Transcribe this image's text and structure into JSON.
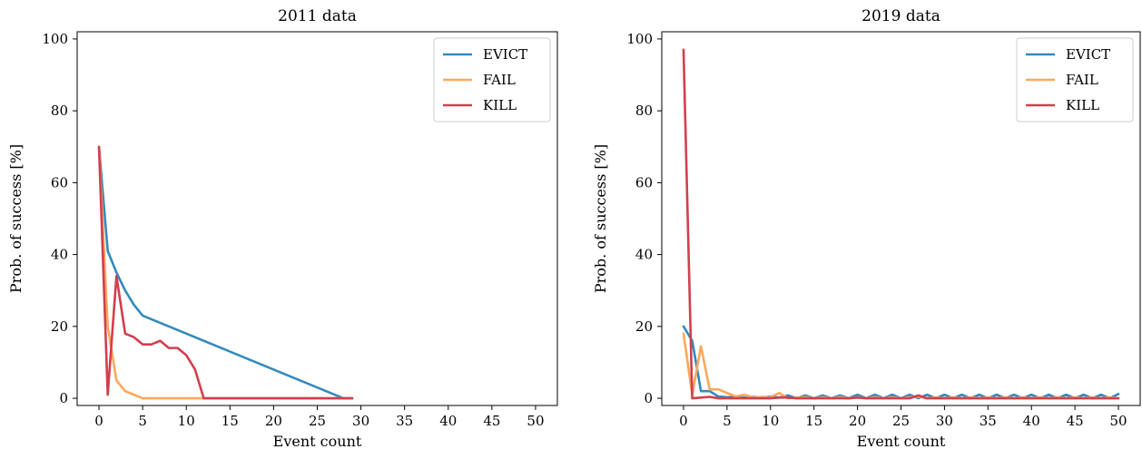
{
  "chart_data": [
    {
      "type": "line",
      "title": "2011 data",
      "xlabel": "Event count",
      "ylabel": "Prob. of success [%]",
      "xlim": [
        -2.5,
        52.5
      ],
      "ylim": [
        -2,
        102
      ],
      "xticks": [
        0,
        5,
        10,
        15,
        20,
        25,
        30,
        35,
        40,
        45,
        50
      ],
      "yticks": [
        0,
        20,
        40,
        60,
        80,
        100
      ],
      "legend_position": "top-right",
      "series": [
        {
          "name": "EVICT",
          "color": "#348abd",
          "x": [
            0,
            1,
            2,
            3,
            4,
            5,
            28,
            29
          ],
          "y": [
            70,
            41,
            35,
            30,
            26,
            23,
            0,
            0
          ]
        },
        {
          "name": "FAIL",
          "color": "#fba85c",
          "x": [
            0,
            1,
            2,
            3,
            4,
            5,
            6,
            7,
            8,
            9,
            10,
            11,
            12,
            13,
            14,
            15,
            16,
            17,
            18,
            19,
            20,
            21,
            22,
            23,
            24,
            25,
            26,
            27,
            28,
            29
          ],
          "y": [
            70,
            20,
            5,
            2,
            1,
            0,
            0,
            0,
            0,
            0,
            0,
            0,
            0,
            0,
            0,
            0,
            0,
            0,
            0,
            0,
            0,
            0,
            0,
            0,
            0,
            0,
            0,
            0,
            0,
            0
          ]
        },
        {
          "name": "KILL",
          "color": "#d23f4d",
          "x": [
            0,
            1,
            2,
            3,
            4,
            5,
            6,
            7,
            8,
            9,
            10,
            11,
            12,
            13,
            14,
            15,
            16,
            17,
            18,
            19,
            20,
            21,
            22,
            23,
            24,
            25,
            26,
            27,
            28,
            29
          ],
          "y": [
            70,
            1,
            34,
            18,
            17,
            15,
            15,
            16,
            14,
            14,
            12,
            8,
            0,
            0,
            0,
            0,
            0,
            0,
            0,
            0,
            0,
            0,
            0,
            0,
            0,
            0,
            0,
            0,
            0,
            0
          ]
        }
      ]
    },
    {
      "type": "line",
      "title": "2019 data",
      "xlabel": "Event count",
      "ylabel": "Prob. of success [%]",
      "xlim": [
        -2.5,
        52.5
      ],
      "ylim": [
        -2,
        102
      ],
      "xticks": [
        0,
        5,
        10,
        15,
        20,
        25,
        30,
        35,
        40,
        45,
        50
      ],
      "yticks": [
        0,
        20,
        40,
        60,
        80,
        100
      ],
      "legend_position": "top-right",
      "series": [
        {
          "name": "EVICT",
          "color": "#348abd",
          "x": [
            0,
            1,
            2,
            3,
            4,
            5,
            6,
            7,
            8,
            9,
            10,
            11,
            12,
            13,
            14,
            15,
            16,
            17,
            18,
            19,
            20,
            21,
            22,
            23,
            24,
            25,
            26,
            27,
            28,
            29,
            30,
            31,
            32,
            33,
            34,
            35,
            36,
            37,
            38,
            39,
            40,
            41,
            42,
            43,
            44,
            45,
            46,
            47,
            48,
            49,
            50
          ],
          "y": [
            20,
            16,
            2,
            2,
            0.5,
            0.3,
            0.5,
            0.2,
            0.4,
            0.2,
            0.5,
            0.2,
            0.8,
            0,
            0.8,
            0,
            0.8,
            0,
            0.8,
            0,
            1,
            0,
            1,
            0,
            1,
            0,
            1,
            0,
            1,
            0,
            1,
            0,
            1,
            0,
            1,
            0,
            1,
            0,
            1,
            0,
            1,
            0,
            1,
            0,
            1,
            0,
            1,
            0,
            1,
            0,
            1.2
          ]
        },
        {
          "name": "FAIL",
          "color": "#fba85c",
          "x": [
            0,
            1,
            2,
            3,
            4,
            5,
            6,
            7,
            8,
            9,
            10,
            11,
            12,
            13,
            14,
            15,
            16,
            17,
            18,
            19,
            20,
            21,
            22,
            23,
            24,
            25,
            26,
            27,
            28,
            29,
            30,
            31,
            32,
            33,
            34,
            35,
            36,
            37,
            38,
            39,
            40,
            41,
            42,
            43,
            44,
            45,
            46,
            47,
            48,
            49,
            50
          ],
          "y": [
            18,
            1,
            14.5,
            2.5,
            2.5,
            1.5,
            0.5,
            1,
            0.2,
            0.4,
            0.3,
            1.5,
            0,
            0.2,
            0.3,
            0,
            0.3,
            0,
            0.3,
            0,
            0.3,
            0,
            0.3,
            0,
            0.3,
            0,
            0.3,
            0.5,
            0,
            0.3,
            0,
            0.3,
            0,
            0.3,
            0,
            0.3,
            0,
            0.3,
            0,
            0.3,
            0,
            0.3,
            0,
            0.3,
            0,
            0.3,
            0,
            0.3,
            0,
            0.3,
            0
          ]
        },
        {
          "name": "KILL",
          "color": "#d23f4d",
          "x": [
            0,
            1,
            2,
            3,
            4,
            5,
            6,
            7,
            8,
            9,
            10,
            11,
            12,
            13,
            14,
            15,
            16,
            17,
            18,
            19,
            20,
            21,
            22,
            23,
            24,
            25,
            26,
            27,
            28,
            29,
            30,
            31,
            32,
            33,
            34,
            35,
            36,
            37,
            38,
            39,
            40,
            41,
            42,
            43,
            44,
            45,
            46,
            47,
            48,
            49,
            50
          ],
          "y": [
            97,
            0,
            0.2,
            0.4,
            0,
            0,
            0,
            0,
            0,
            0,
            0,
            0.2,
            0.2,
            0,
            0,
            0,
            0,
            0,
            0,
            0,
            0.2,
            0,
            0,
            0,
            0,
            0,
            0,
            0.8,
            0,
            0,
            0,
            0,
            0,
            0,
            0,
            0,
            0,
            0,
            0,
            0,
            0,
            0,
            0,
            0,
            0,
            0,
            0,
            0,
            0,
            0,
            0
          ]
        }
      ]
    }
  ]
}
